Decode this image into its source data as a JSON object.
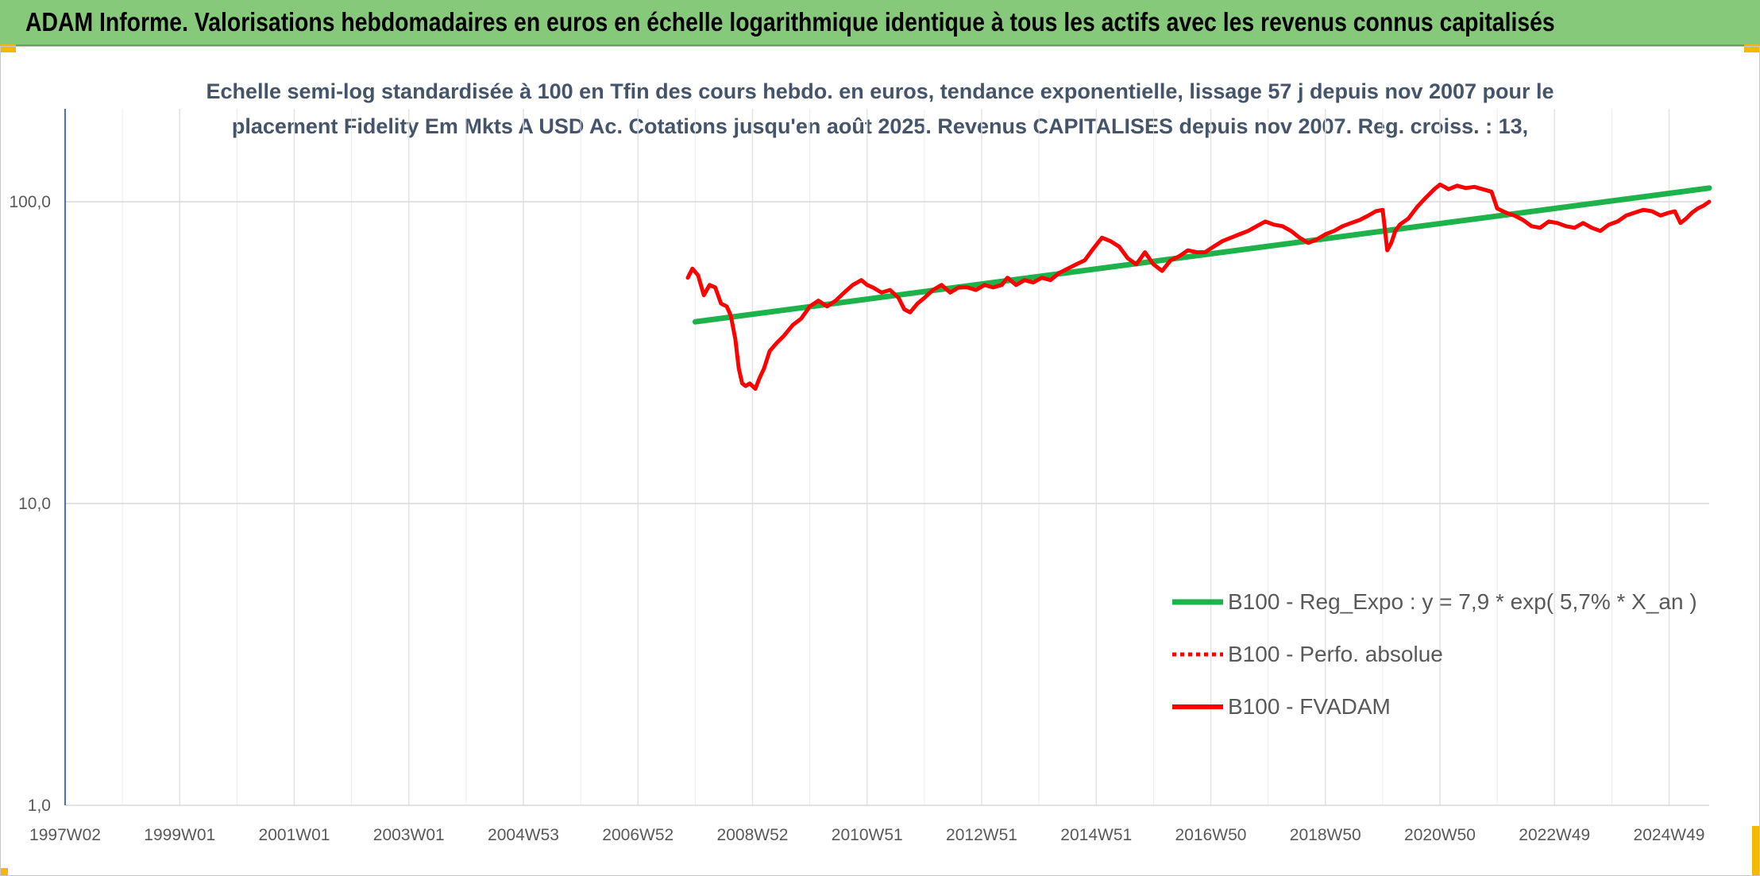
{
  "header": {
    "title": "ADAM Informe. Valorisations hebdomadaires en euros en échelle logarithmique identique à tous les actifs avec les revenus connus capitalisés",
    "banner_color": "#86c97a",
    "corner_color": "#f5b800"
  },
  "chart_data": {
    "type": "line",
    "title_lines": [
      "Echelle semi-log standardisée à 100 en Tfin des cours hebdo. en euros, tendance exponentielle, lissage 57 j depuis nov 2007 pour le",
      "placement Fidelity Em Mkts A USD Ac. Cotations jusqu'en août 2025. Revenus CAPITALISES depuis nov 2007. Reg. croiss. : 13,"
    ],
    "y_scale": "log",
    "ylim": [
      1,
      200
    ],
    "y_ticks": [
      {
        "value": 1,
        "label": "1,0"
      },
      {
        "value": 10,
        "label": "10,0"
      },
      {
        "value": 100,
        "label": "100,0"
      }
    ],
    "xlim": [
      1997.0,
      2025.7
    ],
    "x_ticks": [
      {
        "value": 1997.0,
        "label": "1997W02"
      },
      {
        "value": 1999.0,
        "label": "1999W01"
      },
      {
        "value": 2001.0,
        "label": "2001W01"
      },
      {
        "value": 2003.0,
        "label": "2003W01"
      },
      {
        "value": 2005.0,
        "label": "2004W53"
      },
      {
        "value": 2007.0,
        "label": "2006W52"
      },
      {
        "value": 2009.0,
        "label": "2008W52"
      },
      {
        "value": 2011.0,
        "label": "2010W51"
      },
      {
        "value": 2013.0,
        "label": "2012W51"
      },
      {
        "value": 2015.0,
        "label": "2014W51"
      },
      {
        "value": 2017.0,
        "label": "2016W50"
      },
      {
        "value": 2019.0,
        "label": "2018W50"
      },
      {
        "value": 2021.0,
        "label": "2020W50"
      },
      {
        "value": 2023.0,
        "label": "2022W49"
      },
      {
        "value": 2025.0,
        "label": "2024W49"
      }
    ],
    "grid": {
      "vertical": true,
      "horizontal": true
    },
    "legend_position": "bottom-right",
    "series": [
      {
        "name": "B100 - Reg_Expo : y = 7,9 * exp( 5,7% *  X_an )",
        "color": "#1db34a",
        "style": "solid",
        "x": [
          2008.0,
          2025.7
        ],
        "y": [
          40,
          111
        ]
      },
      {
        "name": "B100 - Perfo. absolue",
        "color": "#ff0000",
        "style": "dotted",
        "x": [],
        "y": []
      },
      {
        "name": "B100 - FVADAM",
        "color": "#ff0000",
        "style": "solid",
        "x": [
          2007.87,
          2007.95,
          2008.05,
          2008.15,
          2008.25,
          2008.35,
          2008.45,
          2008.55,
          2008.62,
          2008.7,
          2008.76,
          2008.82,
          2008.88,
          2008.95,
          2009.05,
          2009.12,
          2009.2,
          2009.3,
          2009.42,
          2009.55,
          2009.7,
          2009.85,
          2010.0,
          2010.15,
          2010.3,
          2010.45,
          2010.6,
          2010.75,
          2010.9,
          2011.0,
          2011.1,
          2011.25,
          2011.4,
          2011.55,
          2011.65,
          2011.75,
          2011.88,
          2012.0,
          2012.15,
          2012.3,
          2012.45,
          2012.6,
          2012.75,
          2012.9,
          2013.05,
          2013.2,
          2013.35,
          2013.45,
          2013.6,
          2013.75,
          2013.9,
          2014.05,
          2014.2,
          2014.35,
          2014.5,
          2014.65,
          2014.8,
          2014.95,
          2015.1,
          2015.25,
          2015.4,
          2015.55,
          2015.7,
          2015.85,
          2016.0,
          2016.15,
          2016.3,
          2016.45,
          2016.6,
          2016.75,
          2016.9,
          2017.05,
          2017.2,
          2017.35,
          2017.5,
          2017.65,
          2017.8,
          2017.95,
          2018.1,
          2018.25,
          2018.4,
          2018.55,
          2018.7,
          2018.85,
          2019.0,
          2019.15,
          2019.3,
          2019.45,
          2019.6,
          2019.75,
          2019.88,
          2020.0,
          2020.08,
          2020.15,
          2020.22,
          2020.3,
          2020.45,
          2020.6,
          2020.75,
          2020.9,
          2021.0,
          2021.08,
          2021.15,
          2021.3,
          2021.45,
          2021.6,
          2021.75,
          2021.9,
          2022.0,
          2022.15,
          2022.3,
          2022.45,
          2022.6,
          2022.75,
          2022.9,
          2023.05,
          2023.2,
          2023.35,
          2023.5,
          2023.65,
          2023.8,
          2023.95,
          2024.1,
          2024.25,
          2024.4,
          2024.55,
          2024.7,
          2024.85,
          2025.0,
          2025.1,
          2025.2,
          2025.3,
          2025.4,
          2025.5,
          2025.6,
          2025.7
        ],
        "y": [
          56,
          60,
          57,
          49,
          53,
          52,
          46,
          45,
          42,
          35,
          28,
          25,
          24.5,
          25,
          24,
          26,
          28,
          32,
          34,
          36,
          39,
          41,
          45,
          47,
          45,
          47,
          50,
          53,
          55,
          53,
          52,
          50,
          51,
          48,
          44,
          43,
          46,
          48,
          51,
          53,
          50,
          52,
          52,
          51,
          53,
          52,
          53,
          56,
          53,
          55,
          54,
          56,
          55,
          58,
          60,
          62,
          64,
          70,
          76,
          74,
          71,
          65,
          62,
          68,
          62,
          59,
          64,
          66,
          69,
          68,
          68,
          71,
          74,
          76,
          78,
          80,
          83,
          86,
          84,
          83,
          80,
          76,
          73,
          75,
          78,
          80,
          83,
          85,
          87,
          90,
          93,
          94,
          69,
          73,
          80,
          84,
          88,
          96,
          103,
          110,
          114,
          112,
          110,
          113,
          111,
          112,
          110,
          108,
          95,
          92,
          90,
          87,
          83,
          82,
          86,
          85,
          83,
          82,
          85,
          82,
          80,
          84,
          86,
          90,
          92,
          94,
          93,
          90,
          92,
          93,
          85,
          88,
          92,
          95,
          97,
          100
        ]
      }
    ]
  }
}
